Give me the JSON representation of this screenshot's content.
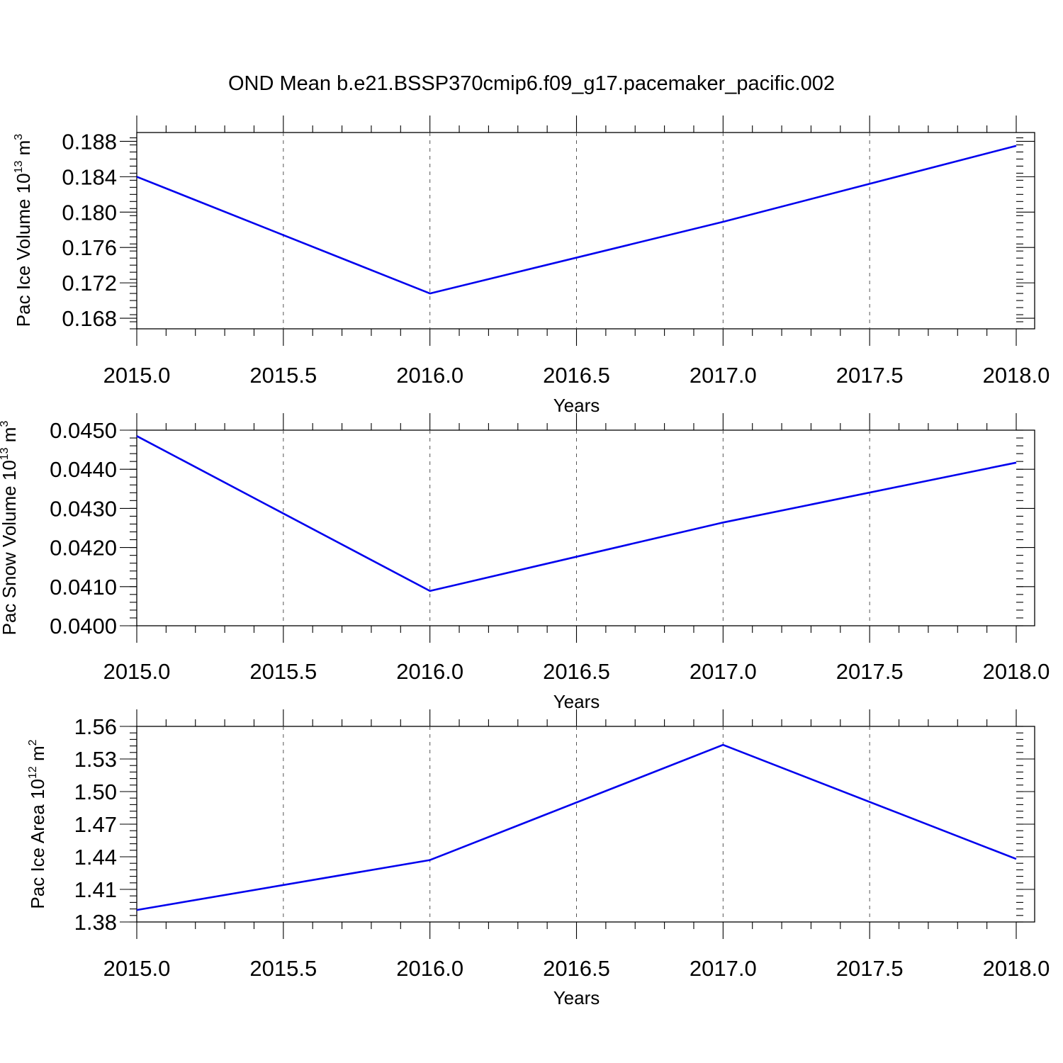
{
  "title": "OND Mean b.e21.BSSP370cmip6.f09_g17.pacemaker_pacific.002",
  "colors": {
    "series": "#0000ee",
    "axes": "#000000",
    "grid": "#555555"
  },
  "chart_data": [
    {
      "type": "line",
      "xlabel": "Years",
      "ylabel": {
        "text": "Pac Ice Volume 10",
        "sup": "13",
        "unit": " m",
        "unit_sup": "3"
      },
      "xlim": [
        2015.0,
        2018.0
      ],
      "ylim": [
        0.1668,
        0.189
      ],
      "xticks": [
        "2015.0",
        "2015.5",
        "2016.0",
        "2016.5",
        "2017.0",
        "2017.5",
        "2018.0"
      ],
      "yticks": [
        "0.168",
        "0.172",
        "0.176",
        "0.180",
        "0.184",
        "0.188"
      ],
      "yminor_step": 0.0008,
      "grid": "vertical-dashed",
      "series": [
        {
          "x": [
            2015,
            2016,
            2017,
            2018
          ],
          "values": [
            0.184,
            0.1708,
            0.1789,
            0.1875
          ]
        }
      ]
    },
    {
      "type": "line",
      "xlabel": "Years",
      "ylabel": {
        "text": "Pac Snow Volume 10",
        "sup": "13",
        "unit": " m",
        "unit_sup": "3"
      },
      "xlim": [
        2015.0,
        2018.0
      ],
      "ylim": [
        0.04,
        0.045
      ],
      "xticks": [
        "2015.0",
        "2015.5",
        "2016.0",
        "2016.5",
        "2017.0",
        "2017.5",
        "2018.0"
      ],
      "yticks": [
        "0.0400",
        "0.0410",
        "0.0420",
        "0.0430",
        "0.0440",
        "0.0450"
      ],
      "yminor_step": 0.0002,
      "grid": "vertical-dashed",
      "series": [
        {
          "x": [
            2015,
            2016,
            2017,
            2018
          ],
          "values": [
            0.04485,
            0.04089,
            0.04264,
            0.04417
          ]
        }
      ]
    },
    {
      "type": "line",
      "xlabel": "Years",
      "ylabel": {
        "text": "Pac Ice Area 10",
        "sup": "12",
        "unit": " m",
        "unit_sup": "2"
      },
      "xlim": [
        2015.0,
        2018.0
      ],
      "ylim": [
        1.38,
        1.56
      ],
      "xticks": [
        "2015.0",
        "2015.5",
        "2016.0",
        "2016.5",
        "2017.0",
        "2017.5",
        "2018.0"
      ],
      "yticks": [
        "1.38",
        "1.41",
        "1.44",
        "1.47",
        "1.50",
        "1.53",
        "1.56"
      ],
      "yminor_step": 0.006,
      "grid": "vertical-dashed",
      "series": [
        {
          "x": [
            2015,
            2016,
            2017,
            2018
          ],
          "values": [
            1.391,
            1.437,
            1.543,
            1.438
          ]
        }
      ]
    }
  ]
}
